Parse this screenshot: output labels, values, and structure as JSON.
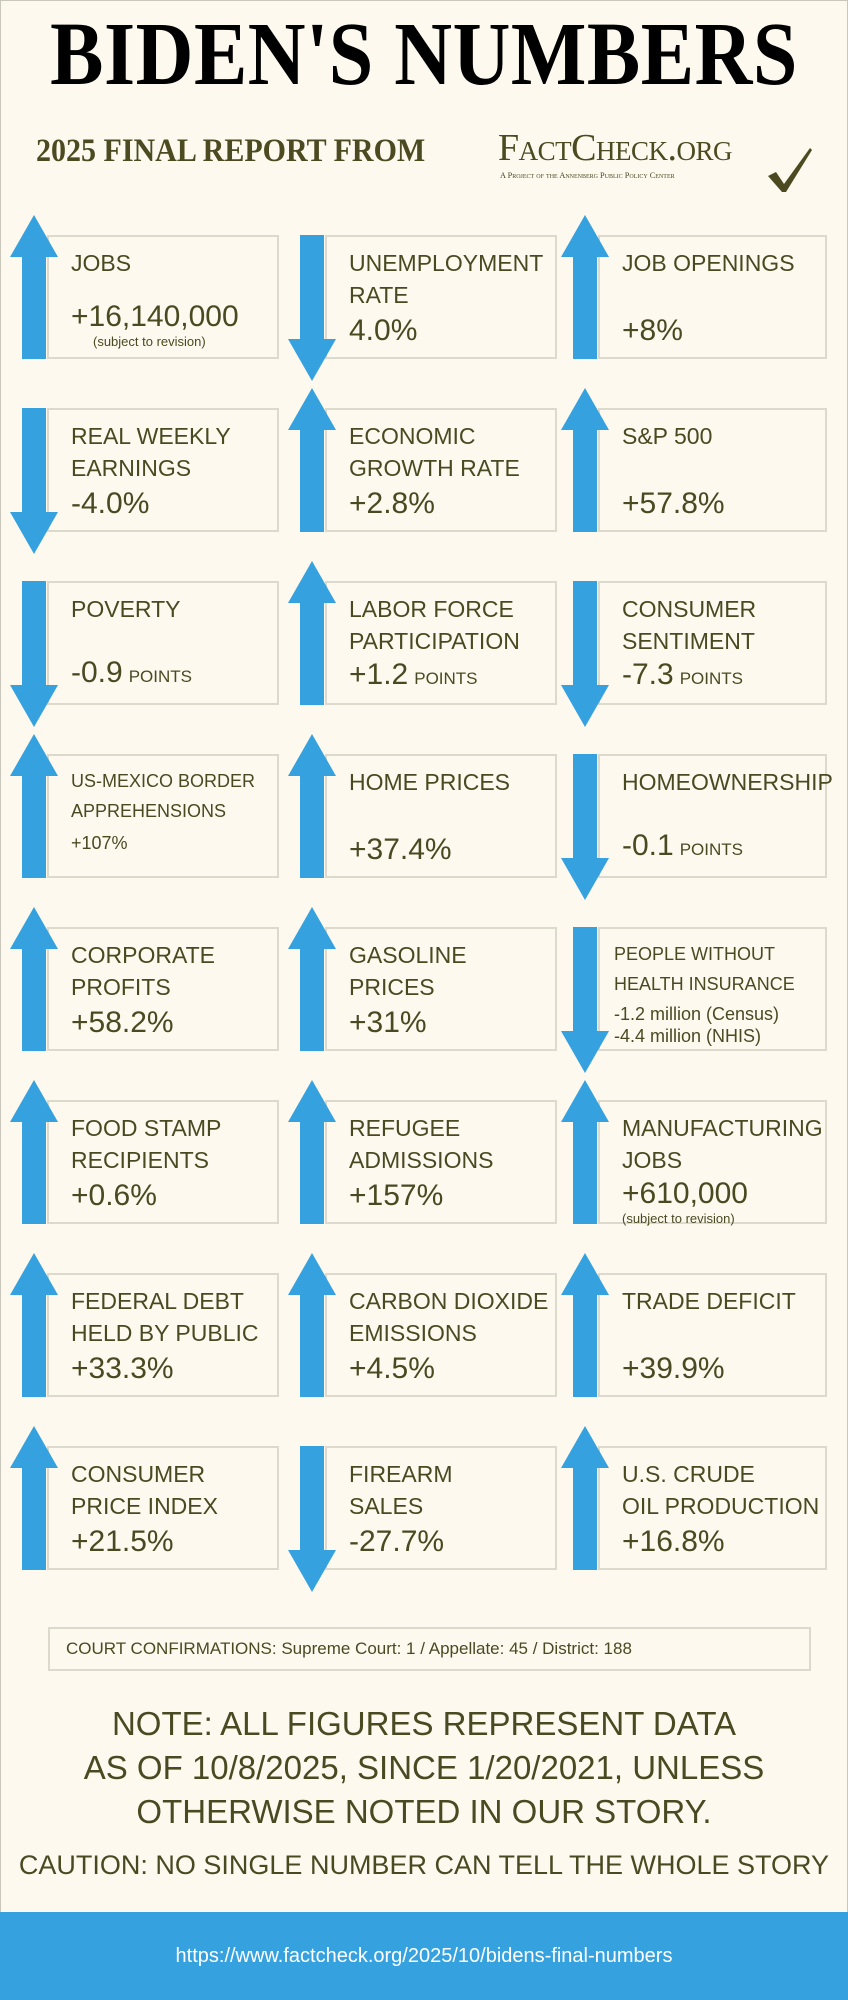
{
  "header": {
    "title": "BIDEN'S NUMBERS",
    "subtitle": "2025 FINAL REPORT FROM",
    "logo_name": "FactCheck.org",
    "logo_tagline": "A Project of the Annenberg Public Policy Center"
  },
  "colors": {
    "arrow": "#35a2df",
    "text": "#4a4a22",
    "background": "#fdf9ee",
    "footer": "#35a2df"
  },
  "tiles": [
    {
      "direction": "up",
      "label": [
        "JOBS"
      ],
      "value": "+16,140,000",
      "note": "(subject to revision)"
    },
    {
      "direction": "down",
      "label": [
        "UNEMPLOYMENT",
        "RATE"
      ],
      "value": "4.0%"
    },
    {
      "direction": "up",
      "label": [
        "JOB OPENINGS"
      ],
      "value": "+8%"
    },
    {
      "direction": "down",
      "label": [
        "REAL WEEKLY",
        "EARNINGS"
      ],
      "value": "-4.0%"
    },
    {
      "direction": "up",
      "label": [
        "ECONOMIC",
        "GROWTH RATE"
      ],
      "value": "+2.8%"
    },
    {
      "direction": "up",
      "label": [
        "S&P 500"
      ],
      "value": "+57.8%"
    },
    {
      "direction": "down",
      "label": [
        "POVERTY"
      ],
      "value": "-0.9",
      "unit": "POINTS"
    },
    {
      "direction": "up",
      "label": [
        "LABOR FORCE",
        "PARTICIPATION"
      ],
      "value": "+1.2",
      "unit": "POINTS"
    },
    {
      "direction": "down",
      "label": [
        "CONSUMER",
        "SENTIMENT"
      ],
      "value": "-7.3",
      "unit": "POINTS"
    },
    {
      "direction": "up",
      "label": [
        "US-MEXICO BORDER",
        "APPREHENSIONS"
      ],
      "value": "+107%"
    },
    {
      "direction": "up",
      "label": [
        "HOME PRICES"
      ],
      "value": "+37.4%"
    },
    {
      "direction": "down",
      "label": [
        "HOMEOWNERSHIP"
      ],
      "value": "-0.1",
      "unit": "POINTS"
    },
    {
      "direction": "up",
      "label": [
        "CORPORATE",
        "PROFITS"
      ],
      "value": "+58.2%"
    },
    {
      "direction": "up",
      "label": [
        "GASOLINE",
        "PRICES"
      ],
      "value": "+31%"
    },
    {
      "direction": "down",
      "label": [
        "PEOPLE WITHOUT",
        "HEALTH INSURANCE"
      ],
      "value": "-1.2 million (Census)",
      "value2": "-4.4 million (NHIS)"
    },
    {
      "direction": "up",
      "label": [
        "FOOD STAMP",
        "RECIPIENTS"
      ],
      "value": "+0.6%"
    },
    {
      "direction": "up",
      "label": [
        "REFUGEE",
        "ADMISSIONS"
      ],
      "value": "+157%"
    },
    {
      "direction": "up",
      "label": [
        "MANUFACTURING",
        "JOBS"
      ],
      "value": "+610,000",
      "note": "(subject to revision)"
    },
    {
      "direction": "up",
      "label": [
        "FEDERAL DEBT",
        "HELD BY PUBLIC"
      ],
      "value": "+33.3%"
    },
    {
      "direction": "up",
      "label": [
        "CARBON DIOXIDE",
        "EMISSIONS"
      ],
      "value": "+4.5%"
    },
    {
      "direction": "up",
      "label": [
        "TRADE DEFICIT"
      ],
      "value": "+39.9%"
    },
    {
      "direction": "up",
      "label": [
        "CONSUMER",
        "PRICE INDEX"
      ],
      "value": "+21.5%"
    },
    {
      "direction": "down",
      "label": [
        "FIREARM",
        "SALES"
      ],
      "value": "-27.7%"
    },
    {
      "direction": "up",
      "label": [
        "U.S. CRUDE",
        "OIL PRODUCTION"
      ],
      "value": "+16.8%"
    }
  ],
  "court": "COURT CONFIRMATIONS:  Supreme Court: 1 / Appellate: 45 / District: 188",
  "note_lines": [
    "NOTE: ALL FIGURES REPRESENT DATA",
    "AS OF 10/8/2025, SINCE 1/20/2021, UNLESS",
    "OTHERWISE NOTED IN OUR STORY."
  ],
  "caution": "CAUTION: NO SINGLE NUMBER CAN TELL THE WHOLE STORY",
  "footer": {
    "url": "https://www.factcheck.org/2025/10/bidens-final-numbers"
  }
}
